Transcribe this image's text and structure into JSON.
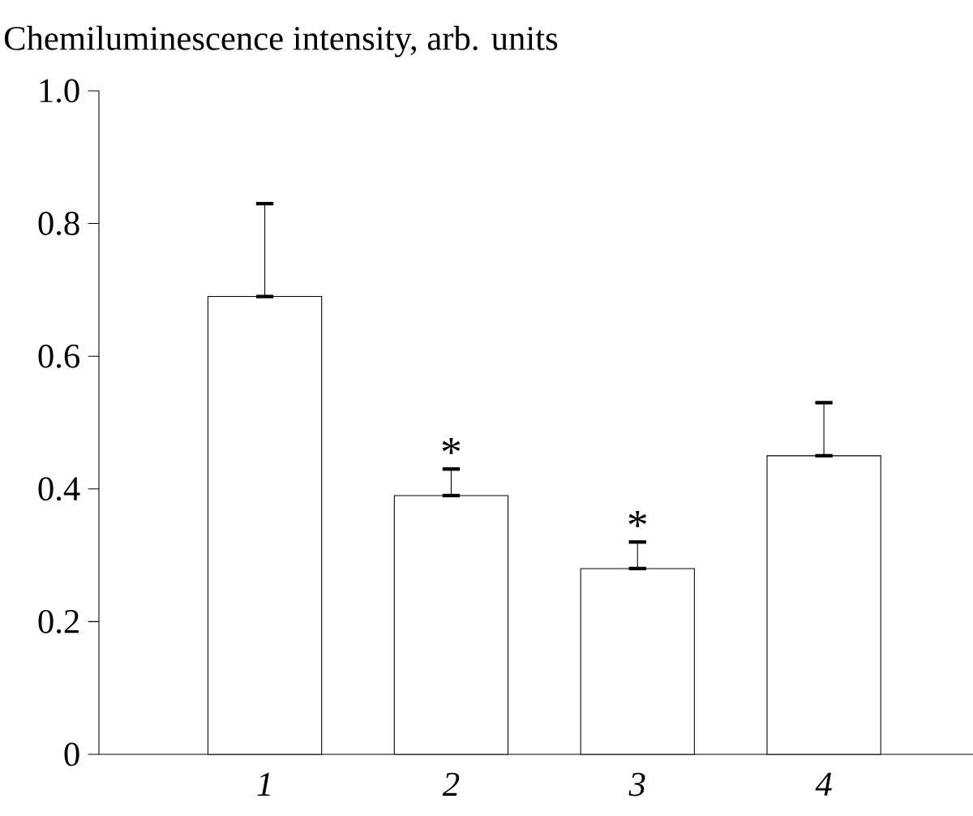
{
  "chart_data": {
    "type": "bar",
    "ylabel": "Chemiluminescence intensity, arb. units",
    "categories": [
      "1",
      "2",
      "3",
      "4"
    ],
    "values": [
      0.69,
      0.39,
      0.28,
      0.45
    ],
    "errors": [
      [
        0.69,
        0.83
      ],
      [
        0.39,
        0.43
      ],
      [
        0.28,
        0.32
      ],
      [
        0.45,
        0.53
      ]
    ],
    "color": "#ffffff",
    "ylim": [
      0,
      1.0
    ],
    "yticks": [
      {
        "value": 0,
        "label": "0"
      },
      0.2,
      0.4,
      0.6,
      0.8,
      {
        "value": 1.0,
        "label": "1.0"
      }
    ],
    "annotations": [
      {
        "text": "*",
        "x": "2",
        "y": 0.43
      },
      {
        "text": "*",
        "x": "3",
        "y": 0.32
      }
    ]
  }
}
